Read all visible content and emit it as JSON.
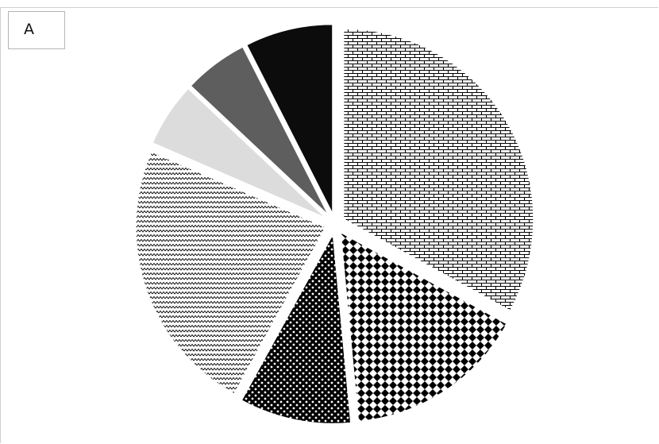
{
  "panel_label": "A",
  "chart_data": {
    "type": "pie",
    "title": "",
    "start_angle_deg": 0,
    "direction": "clockwise",
    "exploded": true,
    "slices": [
      {
        "value": 33.0,
        "pattern": "brick",
        "color": "#000000"
      },
      {
        "value": 15.5,
        "pattern": "diamond",
        "color": "#000000"
      },
      {
        "value": 9.5,
        "pattern": "checker",
        "color": "#000000"
      },
      {
        "value": 23.5,
        "pattern": "zigzag",
        "color": "#000000"
      },
      {
        "value": 5.5,
        "pattern": "solid",
        "color": "#dcdcdc"
      },
      {
        "value": 5.5,
        "pattern": "solid",
        "color": "#5e5e5e"
      },
      {
        "value": 7.5,
        "pattern": "solid",
        "color": "#0c0c0c"
      }
    ]
  }
}
